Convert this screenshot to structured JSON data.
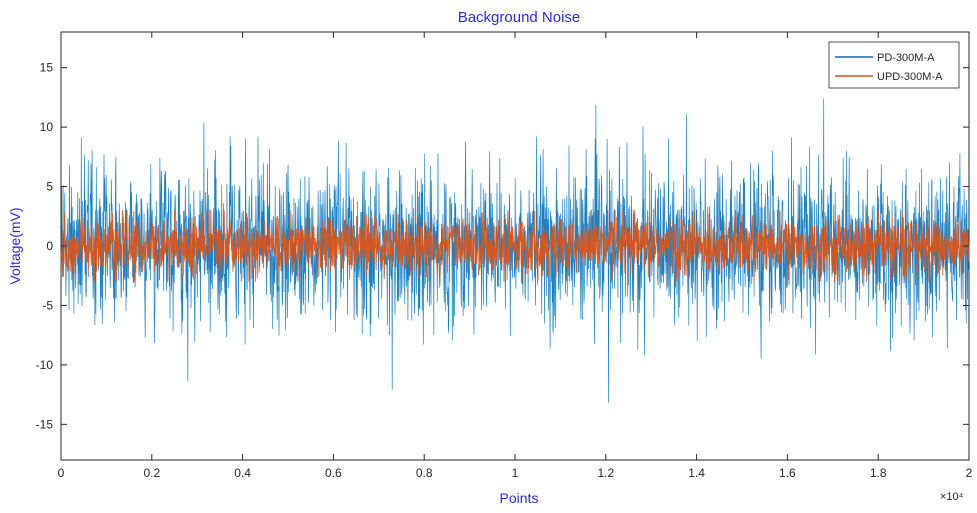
{
  "chart_data": {
    "type": "line",
    "title": "Background Noise",
    "xlabel": "Points",
    "ylabel": "Voltage(mV)",
    "xlim": [
      0,
      20000
    ],
    "ylim": [
      -18,
      18
    ],
    "x_scale_label": "×10⁴",
    "x_ticks": [
      0,
      2000,
      4000,
      6000,
      8000,
      10000,
      12000,
      14000,
      16000,
      18000,
      20000
    ],
    "x_tick_labels": [
      "0",
      "0.2",
      "0.4",
      "0.6",
      "0.8",
      "1",
      "1.2",
      "1.4",
      "1.6",
      "1.8",
      "2"
    ],
    "y_ticks": [
      -15,
      -10,
      -5,
      0,
      5,
      10,
      15
    ],
    "y_tick_labels": [
      "-15",
      "-10",
      "-5",
      "0",
      "5",
      "10",
      "15"
    ],
    "grid": false,
    "legend_position": "top-right",
    "series": [
      {
        "name": "PD-300M-A",
        "color": "#0072bd",
        "x_range": [
          0,
          20000
        ],
        "mean": 0,
        "typical_amplitude": 5,
        "peak_max": 12.5,
        "peak_min": -13.2
      },
      {
        "name": "UPD-300M-A",
        "color": "#d95319",
        "x_range": [
          0,
          20000
        ],
        "mean": 0,
        "typical_amplitude": 2,
        "peak_max": 3,
        "peak_min": -3
      }
    ]
  }
}
